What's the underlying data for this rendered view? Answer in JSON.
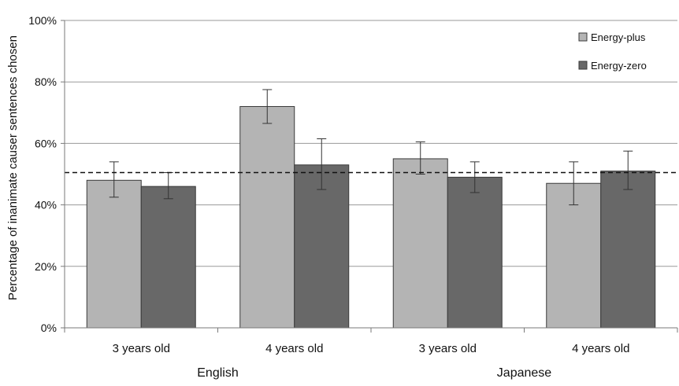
{
  "chart_data": {
    "type": "bar",
    "ylabel": "Percentage of inanimate causer sentences chosen",
    "ylim": [
      0,
      100
    ],
    "yticks": [
      0,
      20,
      40,
      60,
      80,
      100
    ],
    "ytick_labels": [
      "0%",
      "20%",
      "40%",
      "60%",
      "80%",
      "100%"
    ],
    "categories": [
      "3 years old",
      "4 years old",
      "3 years old",
      "4 years old"
    ],
    "groups": [
      {
        "label": "English",
        "categories": [
          0,
          1
        ]
      },
      {
        "label": "Japanese",
        "categories": [
          2,
          3
        ]
      }
    ],
    "series": [
      {
        "name": "Energy-plus",
        "color": "#b4b4b4",
        "values": [
          48,
          72,
          55,
          47
        ],
        "error_low": [
          42.5,
          66.5,
          50,
          40
        ],
        "error_high": [
          54,
          77.5,
          60.5,
          54
        ]
      },
      {
        "name": "Energy-zero",
        "color": "#686868",
        "values": [
          46,
          53,
          49,
          51
        ],
        "error_low": [
          42,
          45,
          44,
          45
        ],
        "error_high": [
          50.5,
          61.5,
          54,
          57.5
        ]
      }
    ],
    "reference_line": {
      "value": 50.5,
      "style": "dashed"
    },
    "grid": true,
    "legend_position": "top-right"
  }
}
